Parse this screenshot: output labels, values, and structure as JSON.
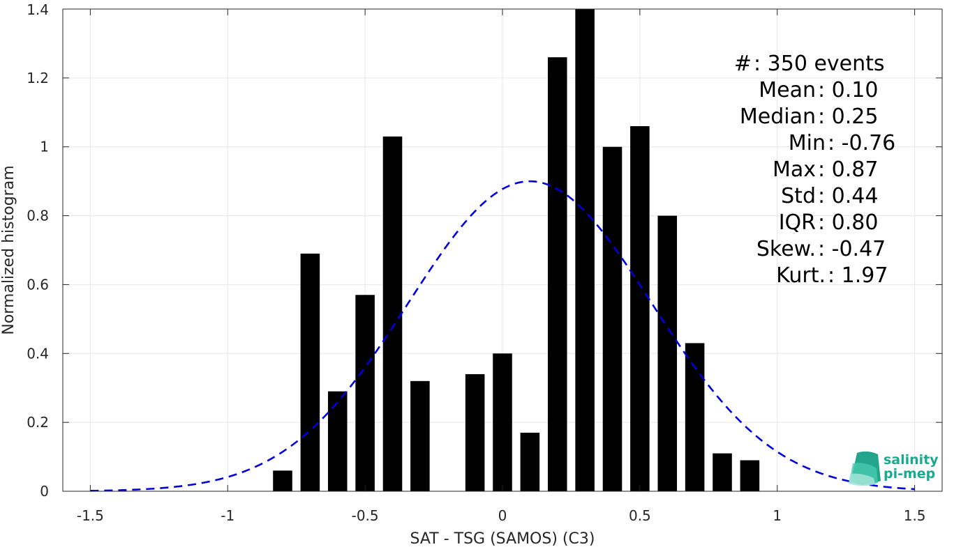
{
  "chart_data": {
    "type": "bar",
    "xlabel": "SAT - TSG (SAMOS) (C3)",
    "ylabel": "Normalized histogram",
    "xlim": [
      -1.6,
      1.6
    ],
    "ylim": [
      0,
      1.4
    ],
    "xticks": [
      -1.5,
      -1,
      -0.5,
      0,
      0.5,
      1,
      1.5
    ],
    "xtick_labels": [
      "-1.5",
      "-1",
      "-0.5",
      "0",
      "0.5",
      "1",
      "1.5"
    ],
    "yticks": [
      0,
      0.2,
      0.4,
      0.6,
      0.8,
      1,
      1.2,
      1.4
    ],
    "ytick_labels": [
      "0",
      "0.2",
      "0.4",
      "0.6",
      "0.8",
      "1",
      "1.2",
      "1.4"
    ],
    "grid": true,
    "bar_color": "#000000",
    "bar_width": 0.07,
    "bars": {
      "x": [
        -0.8,
        -0.7,
        -0.6,
        -0.5,
        -0.4,
        -0.3,
        -0.1,
        0.0,
        0.1,
        0.2,
        0.3,
        0.4,
        0.5,
        0.6,
        0.7,
        0.8,
        0.9
      ],
      "values": [
        0.06,
        0.69,
        0.29,
        0.57,
        1.03,
        0.32,
        0.34,
        0.4,
        0.17,
        1.26,
        1.4,
        1.0,
        1.06,
        0.8,
        0.43,
        0.11,
        0.09
      ]
    },
    "fit": {
      "style": "dashed",
      "color": "#0000dd",
      "type": "gaussian",
      "mean": 0.1,
      "peak": 0.9,
      "x_range": [
        -1.5,
        1.5
      ]
    },
    "stats": [
      {
        "label": "#  ",
        "value": ": 350 events"
      },
      {
        "label": "Mean",
        "value": ": 0.10"
      },
      {
        "label": "Median",
        "value": ": 0.25"
      },
      {
        "label": "Min",
        "value": ": -0.76"
      },
      {
        "label": "Max",
        "value": ": 0.87"
      },
      {
        "label": "Std",
        "value": ": 0.44"
      },
      {
        "label": "IQR",
        "value": ": 0.80"
      },
      {
        "label": "Skew. ",
        "value": ": -0.47"
      },
      {
        "label": "Kurt. ",
        "value": ": 1.97"
      }
    ]
  },
  "logo": {
    "line1": "salinity",
    "line2": "pi-mep",
    "color": "#1aa88f"
  }
}
